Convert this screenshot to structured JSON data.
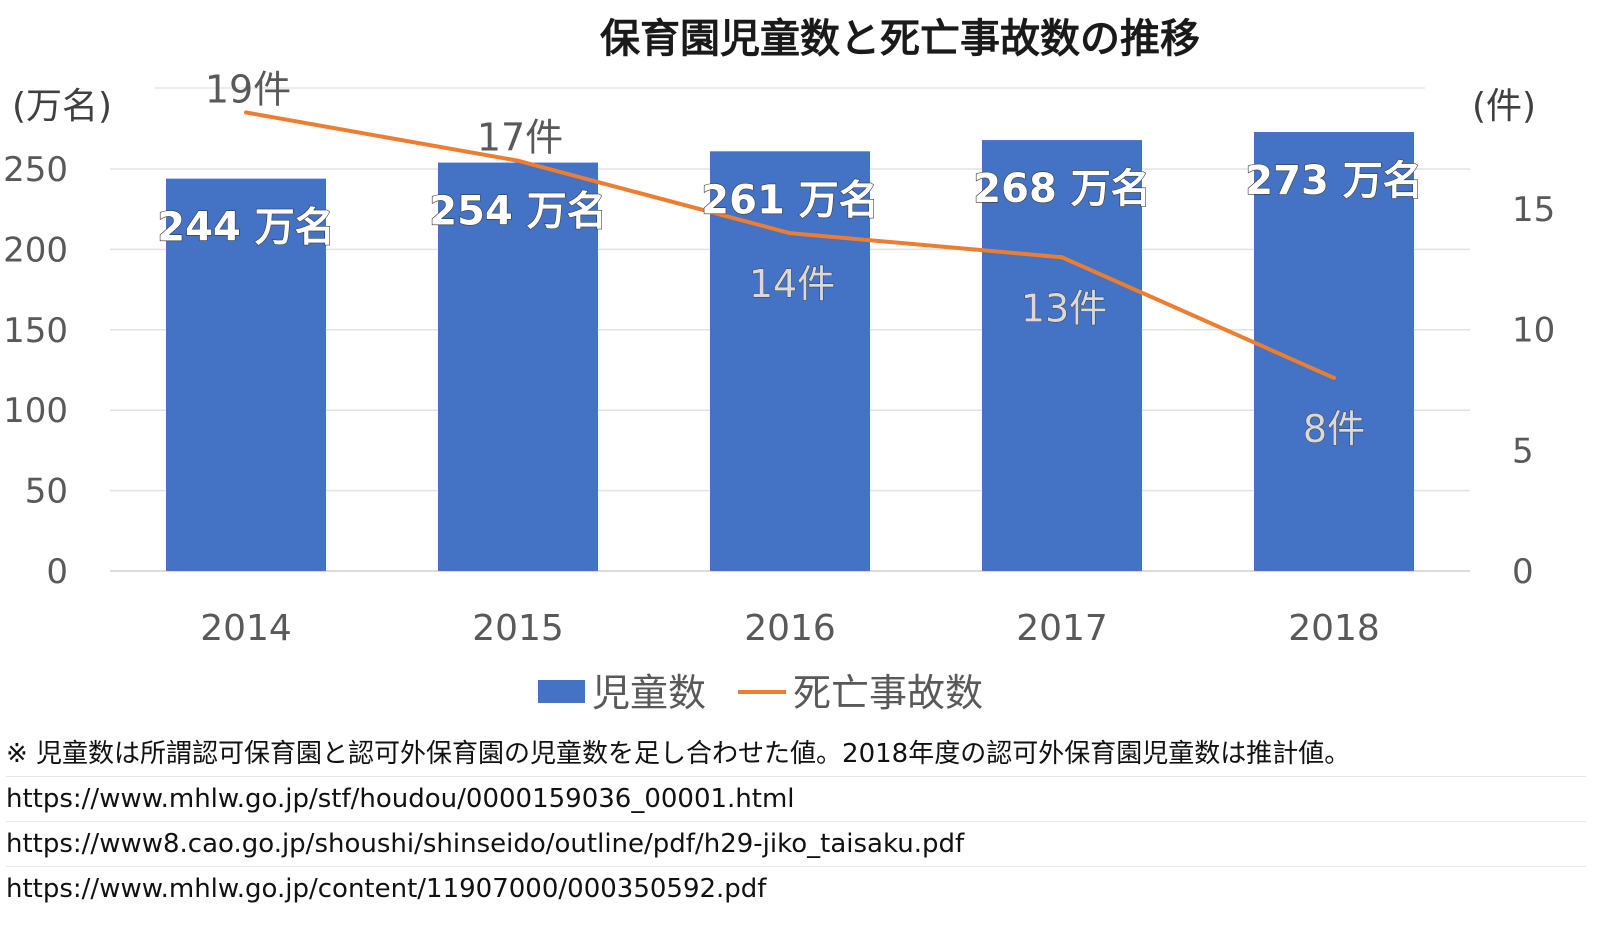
{
  "chart_data": {
    "type": "bar",
    "title": "保育園児童数と死亡事故数の推移",
    "categories": [
      "2014",
      "2015",
      "2016",
      "2017",
      "2018"
    ],
    "y_left": {
      "unit_label": "(万名)",
      "range": [
        0,
        250
      ],
      "ticks": [
        0,
        50,
        100,
        150,
        200,
        250
      ]
    },
    "y_right": {
      "unit_label": "(件)",
      "range": [
        0,
        15
      ],
      "ticks": [
        0,
        5,
        10,
        15
      ]
    },
    "series": [
      {
        "name": "児童数",
        "type": "bar",
        "axis": "left",
        "color": "#4472C4",
        "values": [
          244,
          254,
          261,
          268,
          273
        ],
        "labels": [
          "244 万名",
          "254 万名",
          "261 万名",
          "268 万名",
          "273 万名"
        ]
      },
      {
        "name": "死亡事故数",
        "type": "line",
        "axis": "right",
        "color": "#ED7D31",
        "values": [
          19,
          17,
          14,
          13,
          8
        ],
        "labels": [
          "19件",
          "17件",
          "14件",
          "13件",
          "8件"
        ]
      }
    ],
    "grid": true,
    "legend_position": "bottom"
  },
  "notes": [
    "※ 児童数は所謂認可保育園と認可外保育園の児童数を足し合わせた値。2018年度の認可外保育園児童数は推計値。",
    "https://www.mhlw.go.jp/stf/houdou/0000159036_00001.html",
    "https://www8.cao.go.jp/shoushi/shinseido/outline/pdf/h29-jiko_taisaku.pdf",
    "https://www.mhlw.go.jp/content/11907000/000350592.pdf"
  ]
}
